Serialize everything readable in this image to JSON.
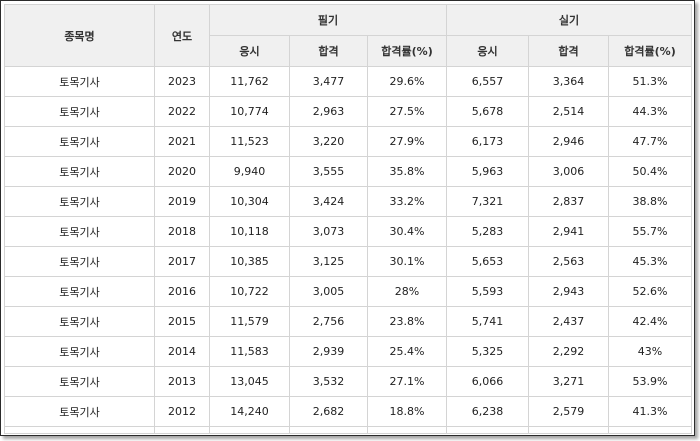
{
  "table": {
    "headers": {
      "name": "종목명",
      "year": "연도",
      "written": "필기",
      "practical": "실기",
      "sub": [
        "응시",
        "합격",
        "합격률(%)",
        "응시",
        "합격",
        "합격률(%)"
      ]
    },
    "rows": [
      [
        "토목기사",
        "2023",
        "11,762",
        "3,477",
        "29.6%",
        "6,557",
        "3,364",
        "51.3%"
      ],
      [
        "토목기사",
        "2022",
        "10,774",
        "2,963",
        "27.5%",
        "5,678",
        "2,514",
        "44.3%"
      ],
      [
        "토목기사",
        "2021",
        "11,523",
        "3,220",
        "27.9%",
        "6,173",
        "2,946",
        "47.7%"
      ],
      [
        "토목기사",
        "2020",
        "9,940",
        "3,555",
        "35.8%",
        "5,963",
        "3,006",
        "50.4%"
      ],
      [
        "토목기사",
        "2019",
        "10,304",
        "3,424",
        "33.2%",
        "7,321",
        "2,837",
        "38.8%"
      ],
      [
        "토목기사",
        "2018",
        "10,118",
        "3,073",
        "30.4%",
        "5,283",
        "2,941",
        "55.7%"
      ],
      [
        "토목기사",
        "2017",
        "10,385",
        "3,125",
        "30.1%",
        "5,653",
        "2,563",
        "45.3%"
      ],
      [
        "토목기사",
        "2016",
        "10,722",
        "3,005",
        "28%",
        "5,593",
        "2,943",
        "52.6%"
      ],
      [
        "토목기사",
        "2015",
        "11,579",
        "2,756",
        "23.8%",
        "5,741",
        "2,437",
        "42.4%"
      ],
      [
        "토목기사",
        "2014",
        "11,583",
        "2,939",
        "25.4%",
        "5,325",
        "2,292",
        "43%"
      ],
      [
        "토목기사",
        "2013",
        "13,045",
        "3,532",
        "27.1%",
        "6,066",
        "3,271",
        "53.9%"
      ],
      [
        "토목기사",
        "2012",
        "14,240",
        "2,682",
        "18.8%",
        "6,238",
        "2,579",
        "41.3%"
      ]
    ]
  }
}
